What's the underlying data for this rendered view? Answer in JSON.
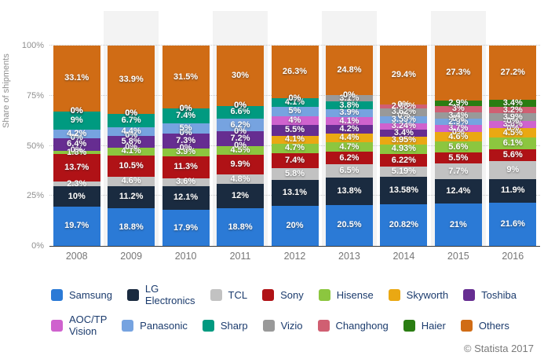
{
  "chart_data": {
    "type": "bar",
    "stacked": true,
    "percent_stacked": true,
    "title": "",
    "xlabel": "",
    "ylabel": "Share of shipments",
    "x": [
      "2008",
      "2009",
      "2010",
      "2011",
      "2012",
      "2013",
      "2014",
      "2015",
      "2016"
    ],
    "yticks": [
      {
        "label": "0%",
        "value": 0
      },
      {
        "label": "25%",
        "value": 25
      },
      {
        "label": "50%",
        "value": 50
      },
      {
        "label": "75%",
        "value": 75
      },
      {
        "label": "100%",
        "value": 100
      }
    ],
    "ylim": [
      0,
      100
    ],
    "grid": "dotted-horizontal",
    "legend_position": "bottom",
    "alt_column_shading": true,
    "series": [
      {
        "name": "Samsung",
        "color": "#2b7ad6",
        "values": [
          19.7,
          18.8,
          17.9,
          18.8,
          20,
          20.5,
          20.82,
          21,
          21.6
        ]
      },
      {
        "name": "LG Electronics",
        "color": "#1a2b40",
        "values": [
          10,
          11.2,
          12.1,
          12,
          13.1,
          13.8,
          13.58,
          12.4,
          11.9
        ]
      },
      {
        "name": "TCL",
        "color": "#c2c2c2",
        "values": [
          2.3,
          4.6,
          3.6,
          4.8,
          5.8,
          6.5,
          5.19,
          7.7,
          9
        ]
      },
      {
        "name": "Sony",
        "color": "#b01216",
        "values": [
          13.7,
          10.5,
          11.3,
          9.9,
          7.4,
          6.2,
          6.22,
          5.5,
          5.6
        ]
      },
      {
        "name": "Hisense",
        "color": "#8cc63f",
        "values": [
          1.8,
          4.1,
          3.9,
          4.5,
          4.7,
          4.7,
          4.93,
          5.6,
          6.1
        ]
      },
      {
        "name": "Skyworth",
        "color": "#eaa813",
        "values": [
          0,
          0,
          0,
          0,
          4.1,
          4.4,
          3.95,
          4.6,
          4.5
        ]
      },
      {
        "name": "Toshiba",
        "color": "#662d91",
        "values": [
          6.4,
          5.8,
          7.3,
          7.2,
          5.5,
          4.2,
          3.4,
          0,
          0
        ]
      },
      {
        "name": "AOC/TP Vision",
        "color": "#cf62ce",
        "values": [
          0,
          0,
          0,
          0,
          4,
          4.1,
          3.24,
          3.7,
          3.6
        ]
      },
      {
        "name": "Panasonic",
        "color": "#76a3e0",
        "values": [
          4.2,
          4.4,
          5,
          6.2,
          5,
          3.9,
          3.59,
          2.9,
          0
        ]
      },
      {
        "name": "Sharp",
        "color": "#009a80",
        "values": [
          9,
          6.7,
          7.4,
          6.6,
          4.1,
          3.8,
          0,
          0,
          0
        ]
      },
      {
        "name": "Vizio",
        "color": "#999999",
        "values": [
          0,
          0,
          0,
          0,
          0,
          3.1,
          3.62,
          3.4,
          3.9
        ]
      },
      {
        "name": "Changhong",
        "color": "#d05f72",
        "values": [
          0,
          0,
          0,
          0,
          0,
          0,
          2.06,
          3,
          3.2
        ]
      },
      {
        "name": "Haier",
        "color": "#2a7d12",
        "values": [
          0,
          0,
          0,
          0,
          0,
          0,
          0,
          2.9,
          3.4
        ]
      },
      {
        "name": "Others",
        "color": "#d06c15",
        "values": [
          33.1,
          33.9,
          31.5,
          30,
          26.3,
          24.8,
          29.4,
          27.3,
          27.2
        ]
      }
    ]
  },
  "credit": "© Statista 2017"
}
